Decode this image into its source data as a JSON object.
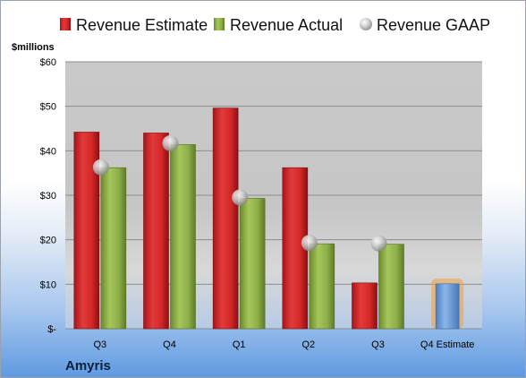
{
  "chart_data": {
    "type": "bar",
    "unit_label": "$millions",
    "company": "Amyris",
    "categories": [
      "Q3",
      "Q4",
      "Q1",
      "Q2",
      "Q3",
      "Q4 Estimate"
    ],
    "ylim": [
      0,
      60
    ],
    "yticks": [
      {
        "value": 0,
        "label": "$-"
      },
      {
        "value": 10,
        "label": "$10"
      },
      {
        "value": 20,
        "label": "$20"
      },
      {
        "value": 30,
        "label": "$30"
      },
      {
        "value": 40,
        "label": "$40"
      },
      {
        "value": 50,
        "label": "$50"
      },
      {
        "value": 60,
        "label": "$60"
      }
    ],
    "grid": true,
    "legend_position": "top",
    "series": [
      {
        "name": "Revenue Estimate",
        "kind": "bar",
        "color": "#d92b2b",
        "values": [
          44.2,
          44.0,
          49.6,
          36.2,
          10.3,
          null
        ]
      },
      {
        "name": "Revenue Actual",
        "kind": "bar",
        "color": "#8fb04a",
        "values": [
          36.2,
          41.4,
          29.3,
          19.1,
          19.0,
          null
        ]
      },
      {
        "name": "Revenue GAAP",
        "kind": "marker",
        "color": "#b8b8b8",
        "values": [
          36.3,
          41.7,
          29.5,
          19.3,
          19.2,
          null
        ]
      }
    ],
    "estimate_bar": {
      "category": "Q4 Estimate",
      "value": 10.1,
      "color": "#6f9fdc",
      "glow": "#f0a03c"
    }
  }
}
